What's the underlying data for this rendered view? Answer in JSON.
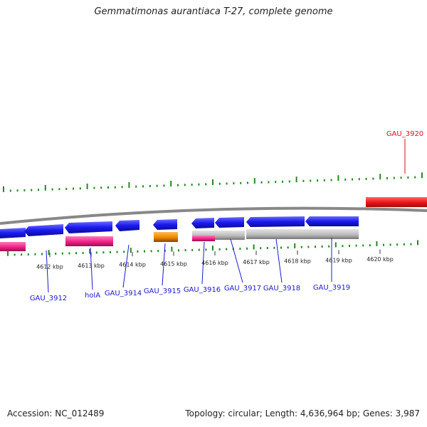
{
  "title": "Gemmatimonas aurantiaca T-27, complete genome",
  "footer": {
    "accession": "Accession: NC_012489",
    "summary": "Topology: circular; Length: 4,636,964 bp; Genes: 3,987"
  },
  "colors": {
    "cds_blue": "#1a1aee",
    "rna_pink": "#ee2288",
    "orange": "#ee8800",
    "pseudo_gray": "#bbbbbb",
    "highlight_red": "#ee1111",
    "gc_green": "#228822",
    "label_blue": "#1a1acc",
    "label_red": "#dd1111",
    "backbone": "#888888"
  },
  "ticks": [
    {
      "label": "4612 kbp"
    },
    {
      "label": "4613 kbp"
    },
    {
      "label": "4614 kbp"
    },
    {
      "label": "4615 kbp"
    },
    {
      "label": "4616 kbp"
    },
    {
      "label": "4617 kbp"
    },
    {
      "label": "4618 kbp"
    },
    {
      "label": "4619 kbp"
    },
    {
      "label": "4620 kbp"
    }
  ],
  "gene_labels": [
    {
      "name": "GAU_3912",
      "color": "blue"
    },
    {
      "name": "holA",
      "color": "blue"
    },
    {
      "name": "GAU_3914",
      "color": "blue"
    },
    {
      "name": "GAU_3915",
      "color": "blue"
    },
    {
      "name": "GAU_3916",
      "color": "blue"
    },
    {
      "name": "GAU_3917",
      "color": "blue"
    },
    {
      "name": "GAU_3918",
      "color": "blue"
    },
    {
      "name": "GAU_3919",
      "color": "blue"
    },
    {
      "name": "GAU_3920",
      "color": "red"
    }
  ]
}
